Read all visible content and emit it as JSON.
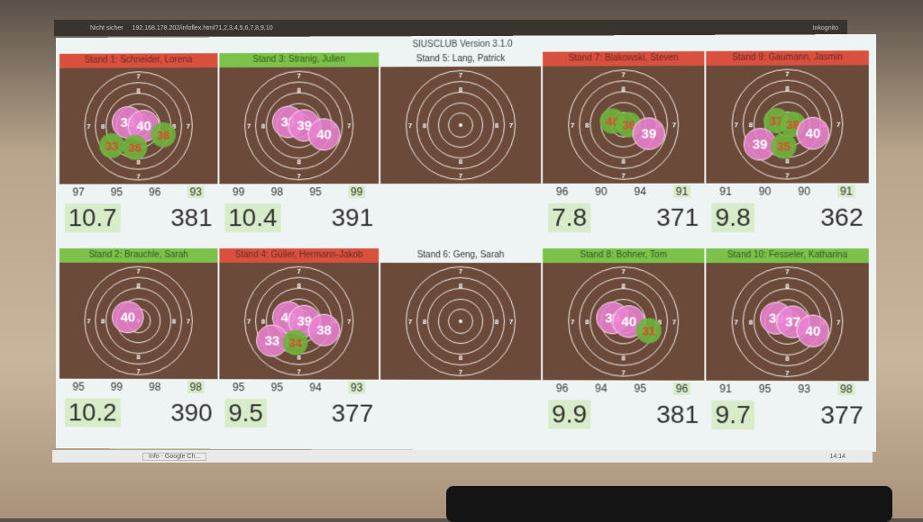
{
  "browser": {
    "security": "Nicht sicher",
    "url": "192.168.178.202/infoflex.html?1,2,3,4,5,6,7,8,9,10",
    "profile": "Inkognito"
  },
  "app": {
    "title": "SIUSCLUB Version 3.1.0"
  },
  "colors": {
    "red": "#d9503f",
    "green": "#7cc24a",
    "target": "#6b4a3a",
    "shot": "#eb82d2"
  },
  "rows": [
    [
      {
        "label": "Stand 1: Schneider, Lorena",
        "status": "red",
        "series": [
          "97",
          "95",
          "96",
          "93"
        ],
        "last": "10.7",
        "total": "381",
        "shots": [
          {
            "v": "38",
            "c": "p"
          },
          {
            "v": "40",
            "c": "p"
          },
          {
            "v": "38",
            "c": "g"
          },
          {
            "v": "33",
            "c": "g"
          },
          {
            "v": "36",
            "c": "g"
          }
        ]
      },
      {
        "label": "Stand 3: Stranig, Julien",
        "status": "green",
        "series": [
          "99",
          "98",
          "95",
          "99"
        ],
        "last": "10.4",
        "total": "391",
        "shots": [
          {
            "v": "33",
            "c": "p"
          },
          {
            "v": "39",
            "c": "p"
          },
          {
            "v": "40",
            "c": "p"
          }
        ]
      },
      {
        "label": "Stand 5: Lang, Patrick",
        "status": "white",
        "series": [],
        "last": "",
        "total": "",
        "shots": []
      },
      {
        "label": "Stand 7: Blakowski, Steven",
        "status": "red",
        "series": [
          "96",
          "90",
          "94",
          "91"
        ],
        "last": "7.8",
        "total": "371",
        "shots": [
          {
            "v": "40",
            "c": "g"
          },
          {
            "v": "36",
            "c": "g"
          },
          {
            "v": "39",
            "c": "p"
          }
        ]
      },
      {
        "label": "Stand 9: Gaumann, Jasmin",
        "status": "red",
        "series": [
          "91",
          "90",
          "90",
          "91"
        ],
        "last": "9.8",
        "total": "362",
        "shots": [
          {
            "v": "37",
            "c": "g"
          },
          {
            "v": "38",
            "c": "g"
          },
          {
            "v": "40",
            "c": "p"
          },
          {
            "v": "39",
            "c": "p"
          },
          {
            "v": "35",
            "c": "g"
          }
        ]
      }
    ],
    [
      {
        "label": "Stand 2: Brauchle, Sarah",
        "status": "green",
        "series": [
          "95",
          "99",
          "98",
          "98"
        ],
        "last": "10.2",
        "total": "390",
        "shots": [
          {
            "v": "40",
            "c": "p"
          }
        ]
      },
      {
        "label": "Stand 4: Güller, Hermann-Jakob",
        "status": "red",
        "series": [
          "95",
          "95",
          "94",
          "93"
        ],
        "last": "9.5",
        "total": "377",
        "shots": [
          {
            "v": "40",
            "c": "p"
          },
          {
            "v": "39",
            "c": "p"
          },
          {
            "v": "38",
            "c": "p"
          },
          {
            "v": "33",
            "c": "p"
          },
          {
            "v": "34",
            "c": "g"
          }
        ]
      },
      {
        "label": "Stand 6: Geng, Sarah",
        "status": "white",
        "series": [],
        "last": "",
        "total": "",
        "shots": []
      },
      {
        "label": "Stand 8: Bohner, Tom",
        "status": "green",
        "series": [
          "96",
          "94",
          "95",
          "96"
        ],
        "last": "9.9",
        "total": "381",
        "shots": [
          {
            "v": "39",
            "c": "p"
          },
          {
            "v": "40",
            "c": "p"
          },
          {
            "v": "31",
            "c": "g"
          }
        ]
      },
      {
        "label": "Stand 10: Fesseler, Katharina",
        "status": "green",
        "series": [
          "91",
          "95",
          "93",
          "98"
        ],
        "last": "9.7",
        "total": "377",
        "shots": [
          {
            "v": "39",
            "c": "p"
          },
          {
            "v": "37",
            "c": "p"
          },
          {
            "v": "40",
            "c": "p"
          }
        ]
      }
    ]
  ],
  "ring_labels": [
    "7",
    "8"
  ],
  "taskbar": {
    "window": "Info - Google Ch...",
    "clock": "14:14"
  }
}
